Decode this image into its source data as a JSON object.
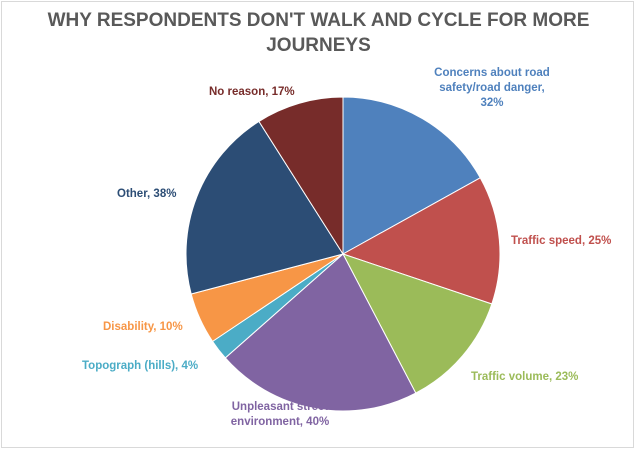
{
  "chart_data": {
    "type": "pie",
    "title": "WHY RESPONDENTS DON'T WALK AND CYCLE FOR MORE JOURNEYS",
    "title_lines": [
      "WHY RESPONDENTS DON'T WALK AND CYCLE FOR MORE",
      "JOURNEYS"
    ],
    "legend": "none",
    "slices": [
      {
        "label": "Concerns about road safety/road danger",
        "value": 32,
        "display": "32%",
        "label_lines": [
          "Concerns about road",
          "safety/road danger,",
          "32%"
        ],
        "color": "#4F81BD",
        "label_color": "#4F81BD"
      },
      {
        "label": "Traffic speed",
        "value": 25,
        "display": "25%",
        "label_lines": [
          "Traffic speed, 25%"
        ],
        "color": "#C0504D",
        "label_color": "#C0504D"
      },
      {
        "label": "Traffic volume",
        "value": 23,
        "display": "23%",
        "label_lines": [
          "Traffic volume, 23%"
        ],
        "color": "#9BBB59",
        "label_color": "#9BBB59"
      },
      {
        "label": "Unpleasant street environment",
        "value": 40,
        "display": "40%",
        "label_lines": [
          "Unpleasant street",
          "environment, 40%"
        ],
        "color": "#8064A2",
        "label_color": "#8064A2"
      },
      {
        "label": "Topograph (hills)",
        "value": 4,
        "display": "4%",
        "label_lines": [
          "Topograph (hills), 4%"
        ],
        "color": "#4BACC6",
        "label_color": "#4BACC6"
      },
      {
        "label": "Disability",
        "value": 10,
        "display": "10%",
        "label_lines": [
          "Disability, 10%"
        ],
        "color": "#F79646",
        "label_color": "#F79646"
      },
      {
        "label": "Other",
        "value": 38,
        "display": "38%",
        "label_lines": [
          "Other, 38%"
        ],
        "color": "#2C4D75",
        "label_color": "#2C4D75"
      },
      {
        "label": "No reason",
        "value": 17,
        "display": "17%",
        "label_lines": [
          "No reason, 17%"
        ],
        "color": "#772C2A",
        "label_color": "#772C2A"
      }
    ]
  }
}
